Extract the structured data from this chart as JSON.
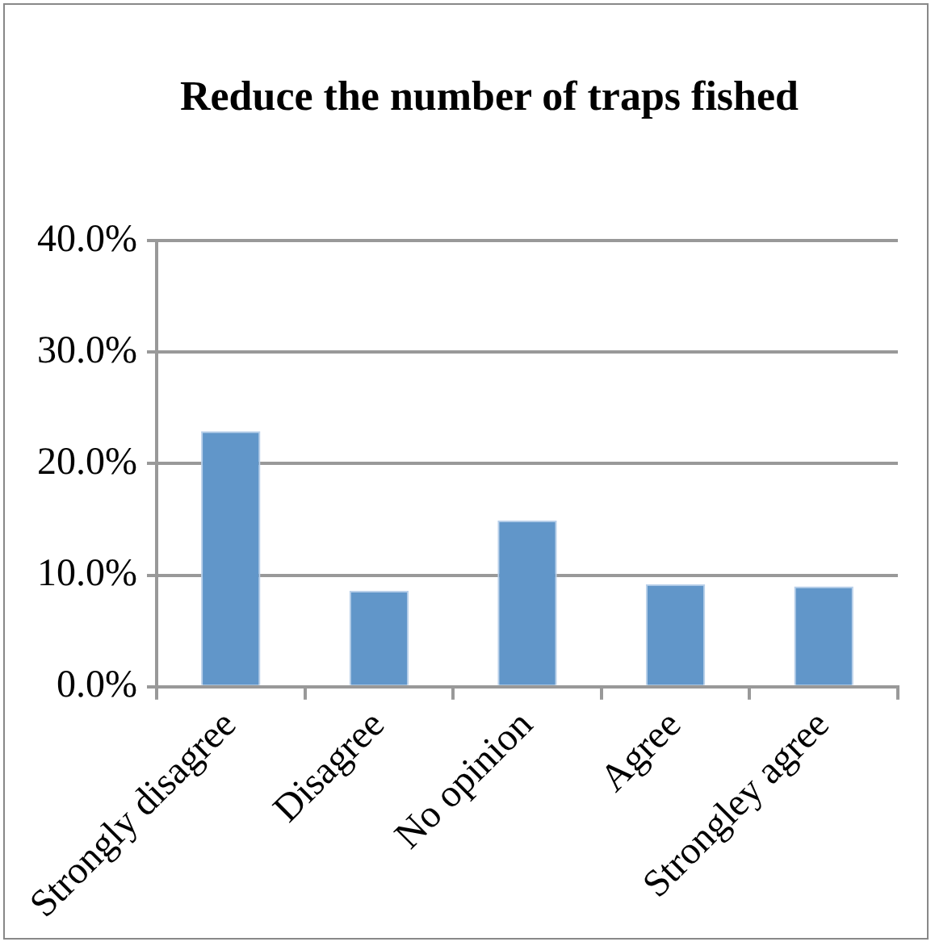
{
  "chart_data": {
    "type": "bar",
    "title": "Reduce the number of traps fished",
    "categories": [
      "Strongly disagree",
      "Disagree",
      "No opinion",
      "Agree",
      "Strongley agree"
    ],
    "values": [
      22.9,
      8.6,
      14.9,
      9.2,
      9.0
    ],
    "color": "#6196c9",
    "ylim": [
      0,
      40
    ],
    "yticks": [
      {
        "value": 0,
        "label": "0.0%"
      },
      {
        "value": 10,
        "label": "10.0%"
      },
      {
        "value": 20,
        "label": "20.0%"
      },
      {
        "value": 30,
        "label": "30.0%"
      },
      {
        "value": 40,
        "label": "40.0%"
      }
    ],
    "grid": "y"
  }
}
